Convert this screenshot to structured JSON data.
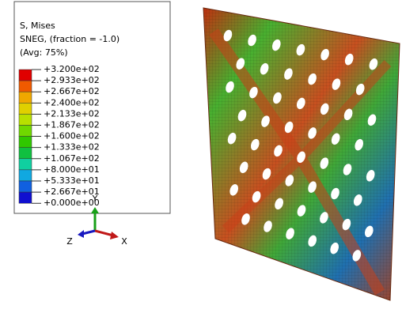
{
  "legend": {
    "title": [
      "S, Mises",
      "SNEG, (fraction = -1.0)",
      "(Avg: 75%)"
    ],
    "labels": [
      "+3.200e+02",
      "+2.933e+02",
      "+2.667e+02",
      "+2.400e+02",
      "+2.133e+02",
      "+1.867e+02",
      "+1.600e+02",
      "+1.333e+02",
      "+1.067e+02",
      "+8.000e+01",
      "+5.333e+01",
      "+2.667e+01",
      "+0.000e+00"
    ],
    "colors": [
      "#e00000",
      "#f05a00",
      "#f0a800",
      "#e0d000",
      "#b8e000",
      "#70d800",
      "#30c800",
      "#10c040",
      "#10d0a0",
      "#10a8e0",
      "#1060e0",
      "#1010d0"
    ]
  },
  "triad": {
    "y": "Y",
    "z": "Z",
    "x": "X"
  }
}
